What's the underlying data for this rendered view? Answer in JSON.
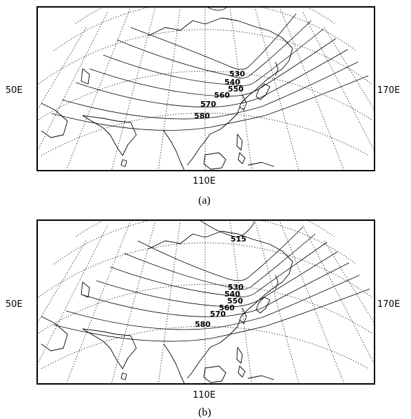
{
  "panels": [
    {
      "id": "a",
      "caption": "(a)",
      "lon_labels": {
        "left": "50E",
        "right": "170E",
        "bottom": "110E"
      },
      "contour_labels": [
        "530",
        "540",
        "550",
        "560",
        "570",
        "580"
      ]
    },
    {
      "id": "b",
      "caption": "(b)",
      "lon_labels": {
        "left": "50E",
        "right": "170E",
        "bottom": "110E"
      },
      "contour_labels": [
        "515",
        "530",
        "540",
        "550",
        "560",
        "570",
        "580"
      ]
    }
  ]
}
